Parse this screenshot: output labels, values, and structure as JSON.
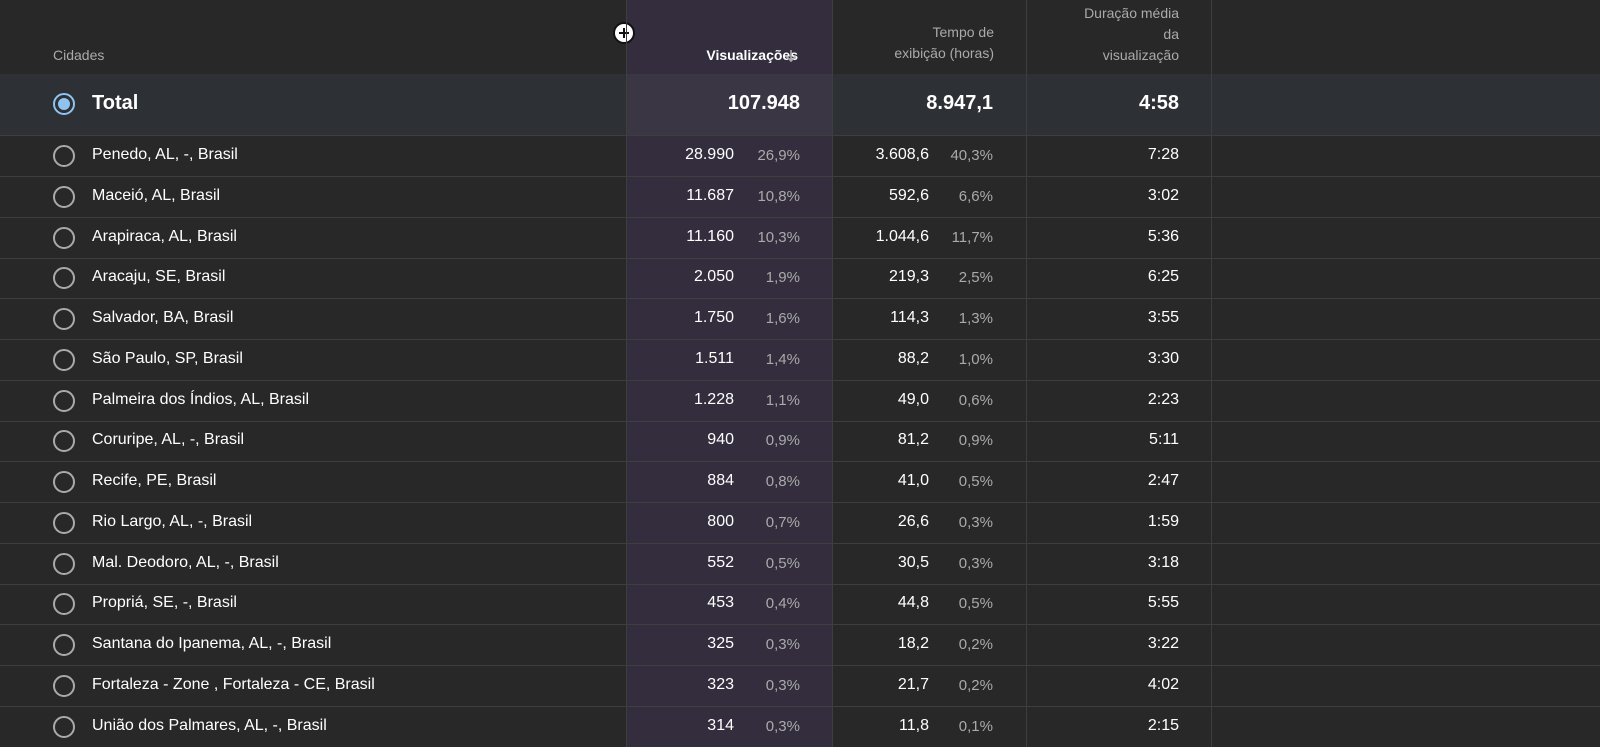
{
  "header": {
    "cities_label": "Cidades",
    "views_label": "Visualizações",
    "watch_time_line1": "Tempo de",
    "watch_time_line2": "exibição (horas)",
    "avg_duration_line1": "Duração média",
    "avg_duration_line2": "da",
    "avg_duration_line3": "visualização",
    "sort_direction": "descending"
  },
  "total": {
    "label": "Total",
    "views": "107.948",
    "watch_time": "8.947,1",
    "avg_duration": "4:58",
    "selected": true
  },
  "rows": [
    {
      "city": "Penedo, AL, -, Brasil",
      "views": "28.990",
      "views_pct": "26,9%",
      "watch": "3.608,6",
      "watch_pct": "40,3%",
      "duration": "7:28"
    },
    {
      "city": "Maceió, AL, Brasil",
      "views": "11.687",
      "views_pct": "10,8%",
      "watch": "592,6",
      "watch_pct": "6,6%",
      "duration": "3:02"
    },
    {
      "city": "Arapiraca, AL, Brasil",
      "views": "11.160",
      "views_pct": "10,3%",
      "watch": "1.044,6",
      "watch_pct": "11,7%",
      "duration": "5:36"
    },
    {
      "city": "Aracaju, SE, Brasil",
      "views": "2.050",
      "views_pct": "1,9%",
      "watch": "219,3",
      "watch_pct": "2,5%",
      "duration": "6:25"
    },
    {
      "city": "Salvador, BA, Brasil",
      "views": "1.750",
      "views_pct": "1,6%",
      "watch": "114,3",
      "watch_pct": "1,3%",
      "duration": "3:55"
    },
    {
      "city": "São Paulo, SP, Brasil",
      "views": "1.511",
      "views_pct": "1,4%",
      "watch": "88,2",
      "watch_pct": "1,0%",
      "duration": "3:30"
    },
    {
      "city": "Palmeira dos Índios, AL, Brasil",
      "views": "1.228",
      "views_pct": "1,1%",
      "watch": "49,0",
      "watch_pct": "0,6%",
      "duration": "2:23"
    },
    {
      "city": "Coruripe, AL, -, Brasil",
      "views": "940",
      "views_pct": "0,9%",
      "watch": "81,2",
      "watch_pct": "0,9%",
      "duration": "5:11"
    },
    {
      "city": "Recife, PE, Brasil",
      "views": "884",
      "views_pct": "0,8%",
      "watch": "41,0",
      "watch_pct": "0,5%",
      "duration": "2:47"
    },
    {
      "city": "Rio Largo, AL, -, Brasil",
      "views": "800",
      "views_pct": "0,7%",
      "watch": "26,6",
      "watch_pct": "0,3%",
      "duration": "1:59"
    },
    {
      "city": "Mal. Deodoro, AL, -, Brasil",
      "views": "552",
      "views_pct": "0,5%",
      "watch": "30,5",
      "watch_pct": "0,3%",
      "duration": "3:18"
    },
    {
      "city": "Propriá, SE, -, Brasil",
      "views": "453",
      "views_pct": "0,4%",
      "watch": "44,8",
      "watch_pct": "0,5%",
      "duration": "5:55"
    },
    {
      "city": "Santana do Ipanema, AL, -, Brasil",
      "views": "325",
      "views_pct": "0,3%",
      "watch": "18,2",
      "watch_pct": "0,2%",
      "duration": "3:22"
    },
    {
      "city": "Fortaleza - Zone , Fortaleza - CE, Brasil",
      "views": "323",
      "views_pct": "0,3%",
      "watch": "21,7",
      "watch_pct": "0,2%",
      "duration": "4:02"
    },
    {
      "city": "União dos Palmares, AL, -, Brasil",
      "views": "314",
      "views_pct": "0,3%",
      "watch": "11,8",
      "watch_pct": "0,1%",
      "duration": "2:15"
    }
  ],
  "colors": {
    "background": "#282828",
    "views_column": "#332d3d",
    "total_row": "#2d3034",
    "radio_selected": "#90c2f0",
    "muted_text": "#aaaaaa"
  },
  "icons": [
    "add-column-icon",
    "sort-down-arrow-icon",
    "radio-selected-icon",
    "radio-unselected-icon"
  ]
}
